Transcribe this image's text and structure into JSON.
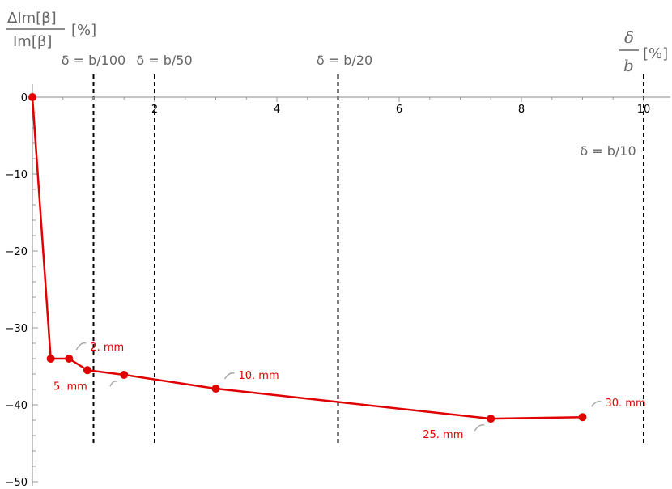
{
  "chart_data": {
    "type": "line",
    "x_axis": {
      "label_parts": [
        "δ",
        "b",
        "[%]"
      ],
      "range": [
        0,
        10.3
      ],
      "major_ticks": [
        2,
        4,
        6,
        8,
        10
      ],
      "tick_labels": [
        "2",
        "4",
        "6",
        "8",
        "10"
      ]
    },
    "y_axis": {
      "label_parts": [
        "ΔIm[β]",
        "Im[β]",
        "[%]"
      ],
      "range": [
        -50,
        2
      ],
      "major_ticks": [
        0,
        -10,
        -20,
        -30,
        -40,
        -50
      ],
      "tick_labels": [
        "0",
        "−10",
        "−20",
        "−30",
        "−40",
        "−50"
      ]
    },
    "series": [
      {
        "color": "#e00000",
        "points": [
          {
            "x": 0.0,
            "y": 0.0
          },
          {
            "x": 0.3,
            "y": -34.0
          },
          {
            "x": 0.6,
            "y": -34.0
          },
          {
            "x": 0.9,
            "y": -35.5
          },
          {
            "x": 1.5,
            "y": -36.1
          },
          {
            "x": 3.0,
            "y": -37.9
          },
          {
            "x": 7.5,
            "y": -41.8
          },
          {
            "x": 9.0,
            "y": -41.6
          }
        ]
      }
    ],
    "point_labels": [
      {
        "point_index": 2,
        "text": "2. mm"
      },
      {
        "point_index": 3,
        "text": "5. mm"
      },
      {
        "point_index": 5,
        "text": "10. mm"
      },
      {
        "point_index": 6,
        "text": "25. mm"
      },
      {
        "point_index": 7,
        "text": "30. mm"
      }
    ],
    "reference_lines": [
      {
        "x": 1.0,
        "label": "δ = b/100"
      },
      {
        "x": 2.0,
        "label": "δ = b/50"
      },
      {
        "x": 5.0,
        "label": "δ = b/20"
      },
      {
        "x": 10.0,
        "label": "δ = b/10"
      }
    ],
    "colors": {
      "series": "#e00000",
      "axis_title": "#666666",
      "reference_line": "#000000"
    }
  }
}
